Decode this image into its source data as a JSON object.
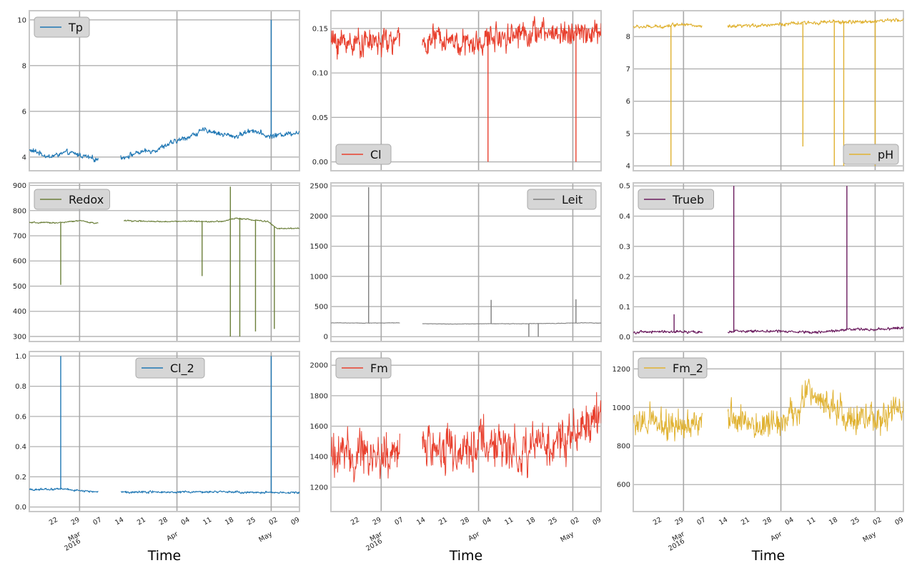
{
  "chart_data": [
    {
      "type": "line",
      "legend": "Tp",
      "legend_position": "upper-left",
      "color": "#1f77b4",
      "ylim": [
        3.4,
        10.4
      ],
      "yticks": [
        4,
        6,
        8,
        10
      ],
      "ytick_labels": [
        "4",
        "6",
        "8",
        "10"
      ],
      "grid": true,
      "xlabel": "",
      "x_range": [
        "2016-02-14",
        "2016-05-10"
      ],
      "series": [
        {
          "x": [
            "2016-02-14",
            "2016-02-17",
            "2016-02-20",
            "2016-02-23",
            "2016-02-26",
            "2016-03-01",
            "2016-03-06",
            "2016-03-15",
            "2016-03-20",
            "2016-03-25",
            "2016-03-30",
            "2016-04-05",
            "2016-04-10",
            "2016-04-15",
            "2016-04-20",
            "2016-04-25",
            "2016-04-30",
            "2016-05-05",
            "2016-05-10"
          ],
          "y": [
            4.3,
            4.2,
            4.0,
            4.1,
            4.2,
            4.1,
            3.9,
            4.0,
            4.2,
            4.3,
            4.6,
            4.9,
            5.2,
            5.0,
            4.9,
            5.2,
            4.9,
            5.0,
            5.1
          ],
          "noise": 0.12,
          "gaps": [
            [
              "2016-03-07",
              "2016-03-14"
            ]
          ],
          "spikes": [
            {
              "x": "2016-05-01",
              "y": 10.0
            }
          ]
        }
      ]
    },
    {
      "type": "line",
      "legend": "Cl",
      "legend_position": "lower-left",
      "color": "#e8402e",
      "ylim": [
        -0.01,
        0.17
      ],
      "yticks": [
        0.0,
        0.05,
        0.1,
        0.15
      ],
      "ytick_labels": [
        "0.00",
        "0.05",
        "0.10",
        "0.15"
      ],
      "grid": true,
      "xlabel": "",
      "x_range": [
        "2016-02-14",
        "2016-05-10"
      ],
      "series": [
        {
          "x": [
            "2016-02-14",
            "2016-02-20",
            "2016-02-26",
            "2016-03-06",
            "2016-03-15",
            "2016-03-20",
            "2016-03-25",
            "2016-03-30",
            "2016-04-05",
            "2016-04-15",
            "2016-04-25",
            "2016-05-05",
            "2016-05-10"
          ],
          "y": [
            0.135,
            0.135,
            0.135,
            0.135,
            0.135,
            0.14,
            0.135,
            0.13,
            0.14,
            0.145,
            0.145,
            0.145,
            0.145
          ],
          "noise": 0.016,
          "gaps": [
            [
              "2016-03-07",
              "2016-03-14"
            ]
          ],
          "spikes": [
            {
              "x": "2016-04-04",
              "y": 0.0
            },
            {
              "x": "2016-05-02",
              "y": 0.0
            }
          ]
        }
      ]
    },
    {
      "type": "line",
      "legend": "pH",
      "legend_position": "lower-right",
      "color": "#e0b232",
      "ylim": [
        3.85,
        8.8
      ],
      "yticks": [
        4,
        5,
        6,
        7,
        8
      ],
      "ytick_labels": [
        "4",
        "5",
        "6",
        "7",
        "8"
      ],
      "grid": true,
      "xlabel": "",
      "x_range": [
        "2016-02-14",
        "2016-05-10"
      ],
      "series": [
        {
          "x": [
            "2016-02-14",
            "2016-02-22",
            "2016-03-01",
            "2016-03-06",
            "2016-03-16",
            "2016-03-25",
            "2016-04-05",
            "2016-04-15",
            "2016-04-25",
            "2016-05-05",
            "2016-05-10"
          ],
          "y": [
            8.3,
            8.3,
            8.4,
            8.3,
            8.3,
            8.35,
            8.4,
            8.45,
            8.45,
            8.5,
            8.5
          ],
          "noise": 0.06,
          "gaps": [
            [
              "2016-03-07",
              "2016-03-15"
            ]
          ],
          "spikes": [
            {
              "x": "2016-02-26",
              "y": 4.0
            },
            {
              "x": "2016-04-08",
              "y": 4.6
            },
            {
              "x": "2016-04-18",
              "y": 4.0
            },
            {
              "x": "2016-04-21",
              "y": 4.0
            },
            {
              "x": "2016-05-01",
              "y": 4.0
            }
          ]
        }
      ]
    },
    {
      "type": "line",
      "legend": "Redox",
      "legend_position": "upper-left",
      "color": "#6b7f3a",
      "ylim": [
        280,
        910
      ],
      "yticks": [
        300,
        400,
        500,
        600,
        700,
        800,
        900
      ],
      "ytick_labels": [
        "300",
        "400",
        "500",
        "600",
        "700",
        "800",
        "900"
      ],
      "grid": true,
      "xlabel": "",
      "x_range": [
        "2016-02-14",
        "2016-05-10"
      ],
      "series": [
        {
          "x": [
            "2016-02-14",
            "2016-02-24",
            "2016-03-01",
            "2016-03-06",
            "2016-03-16",
            "2016-03-25",
            "2016-04-05",
            "2016-04-15",
            "2016-04-20",
            "2016-04-30",
            "2016-05-03",
            "2016-05-10"
          ],
          "y": [
            752,
            752,
            760,
            750,
            760,
            756,
            758,
            756,
            770,
            756,
            728,
            730
          ],
          "noise": 3,
          "gaps": [
            [
              "2016-03-07",
              "2016-03-15"
            ]
          ],
          "spikes": [
            {
              "x": "2016-02-24",
              "y": 505
            },
            {
              "x": "2016-04-09",
              "y": 540
            },
            {
              "x": "2016-04-18",
              "y": 300
            },
            {
              "x": "2016-04-18",
              "y": 895
            },
            {
              "x": "2016-04-21",
              "y": 300
            },
            {
              "x": "2016-04-26",
              "y": 320
            },
            {
              "x": "2016-05-02",
              "y": 330
            }
          ]
        }
      ]
    },
    {
      "type": "line",
      "legend": "Leit",
      "legend_position": "upper-right",
      "color": "#7f7f7f",
      "ylim": [
        -80,
        2550
      ],
      "yticks": [
        0,
        500,
        1000,
        1500,
        2000,
        2500
      ],
      "ytick_labels": [
        "0",
        "500",
        "1000",
        "1500",
        "2000",
        "2500"
      ],
      "grid": true,
      "xlabel": "",
      "x_range": [
        "2016-02-14",
        "2016-05-10"
      ],
      "series": [
        {
          "x": [
            "2016-02-14",
            "2016-02-24",
            "2016-03-06",
            "2016-03-15",
            "2016-03-25",
            "2016-04-05",
            "2016-04-15",
            "2016-04-25",
            "2016-05-05",
            "2016-05-10"
          ],
          "y": [
            230,
            225,
            230,
            215,
            210,
            215,
            215,
            220,
            230,
            225
          ],
          "noise": 4,
          "gaps": [
            [
              "2016-03-07",
              "2016-03-14"
            ]
          ],
          "spikes": [
            {
              "x": "2016-02-26",
              "y": 2480
            },
            {
              "x": "2016-04-05",
              "y": 610
            },
            {
              "x": "2016-04-17",
              "y": 0
            },
            {
              "x": "2016-04-20",
              "y": 0
            },
            {
              "x": "2016-05-02",
              "y": 620
            }
          ]
        }
      ]
    },
    {
      "type": "line",
      "legend": "Trueb",
      "legend_position": "upper-left",
      "color": "#6a1b5e",
      "ylim": [
        -0.015,
        0.51
      ],
      "yticks": [
        0.0,
        0.1,
        0.2,
        0.3,
        0.4,
        0.5
      ],
      "ytick_labels": [
        "0.0",
        "0.1",
        "0.2",
        "0.3",
        "0.4",
        "0.5"
      ],
      "grid": true,
      "xlabel": "",
      "x_range": [
        "2016-02-14",
        "2016-05-10"
      ],
      "series": [
        {
          "x": [
            "2016-02-14",
            "2016-02-24",
            "2016-03-06",
            "2016-03-16",
            "2016-03-25",
            "2016-04-05",
            "2016-04-15",
            "2016-04-22",
            "2016-04-30",
            "2016-05-10"
          ],
          "y": [
            0.015,
            0.018,
            0.015,
            0.018,
            0.02,
            0.018,
            0.016,
            0.025,
            0.025,
            0.03
          ],
          "noise": 0.005,
          "gaps": [
            [
              "2016-03-07",
              "2016-03-15"
            ]
          ],
          "spikes": [
            {
              "x": "2016-02-27",
              "y": 0.075
            },
            {
              "x": "2016-03-17",
              "y": 0.5
            },
            {
              "x": "2016-04-22",
              "y": 0.5
            }
          ]
        }
      ]
    },
    {
      "type": "line",
      "legend": "Cl_2",
      "legend_position": "upper-center",
      "color": "#1f77b4",
      "ylim": [
        -0.03,
        1.03
      ],
      "yticks": [
        0.0,
        0.2,
        0.4,
        0.6,
        0.8,
        1.0
      ],
      "ytick_labels": [
        "0.0",
        "0.2",
        "0.4",
        "0.6",
        "0.8",
        "1.0"
      ],
      "grid": true,
      "xlabel": "Time",
      "x_range": [
        "2016-02-14",
        "2016-05-10"
      ],
      "series": [
        {
          "x": [
            "2016-02-14",
            "2016-02-24",
            "2016-03-06",
            "2016-03-15",
            "2016-03-25",
            "2016-04-05",
            "2016-04-15",
            "2016-04-25",
            "2016-05-05",
            "2016-05-10"
          ],
          "y": [
            0.115,
            0.12,
            0.1,
            0.1,
            0.1,
            0.1,
            0.1,
            0.095,
            0.095,
            0.095
          ],
          "noise": 0.008,
          "gaps": [
            [
              "2016-03-07",
              "2016-03-14"
            ]
          ],
          "spikes": [
            {
              "x": "2016-02-24",
              "y": 1.0
            },
            {
              "x": "2016-05-01",
              "y": 1.0
            }
          ]
        }
      ]
    },
    {
      "type": "line",
      "legend": "Fm",
      "legend_position": "upper-left",
      "color": "#e8402e",
      "ylim": [
        1040,
        2090
      ],
      "yticks": [
        1200,
        1400,
        1600,
        1800,
        2000
      ],
      "ytick_labels": [
        "1200",
        "1400",
        "1600",
        "1800",
        "2000"
      ],
      "grid": true,
      "xlabel": "Time",
      "x_range": [
        "2016-02-14",
        "2016-05-10"
      ],
      "series": [
        {
          "x": [
            "2016-02-14",
            "2016-02-24",
            "2016-03-06",
            "2016-03-15",
            "2016-03-25",
            "2016-04-05",
            "2016-04-15",
            "2016-04-25",
            "2016-05-05",
            "2016-05-10"
          ],
          "y": [
            1420,
            1400,
            1420,
            1480,
            1450,
            1480,
            1450,
            1500,
            1600,
            1700
          ],
          "noise": 170,
          "gaps": [
            [
              "2016-03-07",
              "2016-03-14"
            ]
          ],
          "spikes": []
        }
      ]
    },
    {
      "type": "line",
      "legend": "Fm_2",
      "legend_position": "upper-left",
      "color": "#e0b232",
      "ylim": [
        460,
        1290
      ],
      "yticks": [
        600,
        800,
        1000,
        1200
      ],
      "ytick_labels": [
        "600",
        "800",
        "1000",
        "1200"
      ],
      "grid": true,
      "xlabel": "Time",
      "x_range": [
        "2016-02-14",
        "2016-05-10"
      ],
      "series": [
        {
          "x": [
            "2016-02-14",
            "2016-02-24",
            "2016-03-04",
            "2016-03-16",
            "2016-03-25",
            "2016-04-05",
            "2016-04-10",
            "2016-04-20",
            "2016-05-01",
            "2016-05-10"
          ],
          "y": [
            930,
            900,
            900,
            960,
            880,
            980,
            1080,
            980,
            920,
            1000
          ],
          "noise": 90,
          "gaps": [
            [
              "2016-03-07",
              "2016-03-15"
            ]
          ],
          "spikes": []
        }
      ]
    }
  ],
  "x_axis": {
    "ticks": [
      "2016-02-22",
      "2016-02-29",
      "2016-03-07",
      "2016-03-14",
      "2016-03-21",
      "2016-03-28",
      "2016-04-04",
      "2016-04-11",
      "2016-04-18",
      "2016-04-25",
      "2016-05-02",
      "2016-05-09"
    ],
    "tick_labels": [
      "22",
      "29",
      "07",
      "14",
      "21",
      "28",
      "04",
      "11",
      "18",
      "25",
      "02",
      "09"
    ],
    "month_ticks": [
      "2016-03-01",
      "2016-04-01",
      "2016-05-01"
    ],
    "month_labels": [
      "Mar\n2016",
      "Apr",
      "May"
    ],
    "major_gridlines": [
      "2016-03-01",
      "2016-04-01",
      "2016-05-01"
    ]
  }
}
